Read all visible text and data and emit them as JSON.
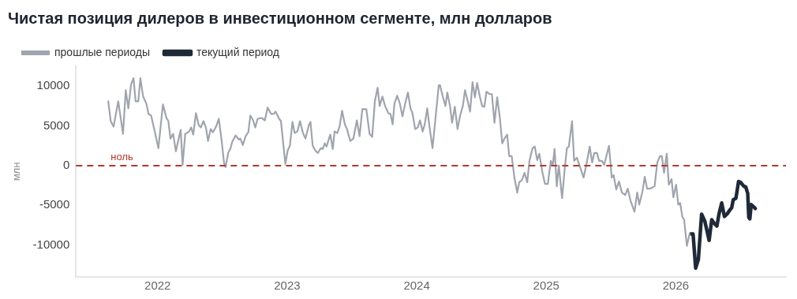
{
  "chart_data": {
    "type": "line",
    "title": "Чистая позиция дилеров в инвестиционном сегменте, млн долларов",
    "ylabel": "млн",
    "xlim": [
      2021.37,
      2026.85
    ],
    "xticks": [
      2022,
      2023,
      2024,
      2025,
      2026
    ],
    "ylim": [
      -14000,
      12500
    ],
    "yticks": [
      -10000,
      -5000,
      0,
      5000,
      10000
    ],
    "grid": false,
    "legend": "top left",
    "marker": "none",
    "line_style": "solid",
    "ref_lines": [
      {
        "axis": "y",
        "value": 0,
        "label": "ноль",
        "color": "#b03a2e",
        "line_style": "dashed"
      }
    ],
    "series": [
      {
        "name": "прошлые периоды",
        "color": "#a0a4ad",
        "x": [
          2021.619,
          2021.638,
          2021.66,
          2021.696,
          2021.733,
          2021.754,
          2021.774,
          2021.795,
          2021.814,
          2021.83,
          2021.851,
          2021.867,
          2021.888,
          2021.913,
          2021.93,
          2021.95,
          2021.975,
          2022.006,
          2022.041,
          2022.068,
          2022.083,
          2022.099,
          2022.12,
          2022.141,
          2022.178,
          2022.193,
          2022.213,
          2022.244,
          2022.259,
          2022.275,
          2022.296,
          2022.317,
          2022.333,
          2022.354,
          2022.373,
          2022.389,
          2022.41,
          2022.427,
          2022.451,
          2022.472,
          2022.493,
          2022.513,
          2022.524,
          2022.545,
          2022.561,
          2022.576,
          2022.602,
          2022.627,
          2022.638,
          2022.658,
          2022.679,
          2022.7,
          2022.716,
          2022.737,
          2022.754,
          2022.772,
          2022.803,
          2022.828,
          2022.849,
          2022.876,
          2022.896,
          2022.911,
          2022.938,
          2022.952,
          2022.986,
          2023.004,
          2023.021,
          2023.041,
          2023.058,
          2023.079,
          2023.099,
          2023.12,
          2023.141,
          2023.168,
          2023.18,
          2023.197,
          2023.217,
          2023.238,
          2023.259,
          2023.275,
          2023.29,
          2023.304,
          2023.321,
          2023.333,
          2023.352,
          2023.366,
          2023.387,
          2023.404,
          2023.424,
          2023.445,
          2023.462,
          2023.487,
          2023.511,
          2023.538,
          2023.559,
          2023.58,
          2023.611,
          2023.636,
          2023.656,
          2023.677,
          2023.698,
          2023.714,
          2023.735,
          2023.756,
          2023.781,
          2023.797,
          2023.814,
          2023.828,
          2023.849,
          2023.87,
          2023.89,
          2023.911,
          2023.932,
          2023.952,
          2023.967,
          2023.988,
          2024.008,
          2024.025,
          2024.046,
          2024.062,
          2024.081,
          2024.101,
          2024.122,
          2024.145,
          2024.17,
          2024.18,
          2024.201,
          2024.222,
          2024.236,
          2024.257,
          2024.273,
          2024.294,
          2024.315,
          2024.335,
          2024.356,
          2024.373,
          2024.398,
          2024.412,
          2024.431,
          2024.449,
          2024.466,
          2024.487,
          2024.505,
          2024.522,
          2024.538,
          2024.563,
          2024.58,
          2024.6,
          2024.621,
          2024.642,
          2024.66,
          2024.677,
          2024.698,
          2024.714,
          2024.733,
          2024.754,
          2024.776,
          2024.791,
          2024.812,
          2024.832,
          2024.853,
          2024.87,
          2024.894,
          2024.911,
          2024.93,
          2024.946,
          2024.971,
          2024.99,
          2025.012,
          2025.035,
          2025.05,
          2025.064,
          2025.081,
          2025.097,
          2025.122,
          2025.143,
          2025.159,
          2025.174,
          2025.199,
          2025.215,
          2025.236,
          2025.257,
          2025.288,
          2025.308,
          2025.335,
          2025.354,
          2025.371,
          2025.391,
          2025.408,
          2025.429,
          2025.447,
          2025.464,
          2025.484,
          2025.505,
          2025.52,
          2025.54,
          2025.561,
          2025.584,
          2025.609,
          2025.629,
          2025.65,
          2025.681,
          2025.702,
          2025.718,
          2025.743,
          2025.76,
          2025.778,
          2025.801,
          2025.836,
          2025.857,
          2025.878,
          2025.892,
          2025.909,
          2025.93,
          2025.946,
          2025.967,
          2025.981,
          2026.002,
          2026.019,
          2026.033,
          2026.05,
          2026.064,
          2026.085,
          2026.106
        ],
        "values": [
          8100,
          5600,
          4900,
          8100,
          4000,
          9500,
          7200,
          10200,
          11000,
          8100,
          8100,
          11000,
          8700,
          7800,
          6500,
          6300,
          4500,
          2200,
          7700,
          6000,
          5600,
          3400,
          4000,
          1800,
          4500,
          100,
          4000,
          4300,
          4800,
          3900,
          6600,
          5100,
          4800,
          5600,
          4800,
          3100,
          4600,
          4200,
          4900,
          5900,
          3300,
          300,
          -200,
          1600,
          2100,
          3000,
          3800,
          3300,
          3400,
          2600,
          3700,
          4200,
          6300,
          5700,
          4800,
          5900,
          6000,
          5700,
          7300,
          6500,
          6500,
          6800,
          5900,
          5600,
          200,
          1900,
          2500,
          5500,
          4100,
          4300,
          5600,
          4200,
          3400,
          5100,
          5500,
          2500,
          1900,
          1600,
          2200,
          2100,
          2800,
          2400,
          3300,
          3900,
          2100,
          4300,
          4100,
          4900,
          6900,
          5200,
          4600,
          3100,
          3400,
          5700,
          3700,
          7100,
          7100,
          4000,
          3600,
          8100,
          9800,
          7500,
          8700,
          7500,
          6600,
          6500,
          5200,
          7800,
          8800,
          7800,
          6200,
          7800,
          9200,
          7200,
          6600,
          4600,
          4800,
          5700,
          4300,
          5200,
          7200,
          4600,
          2200,
          6000,
          10100,
          10100,
          8700,
          7500,
          9200,
          7500,
          5400,
          7400,
          4600,
          6300,
          7500,
          9500,
          7800,
          6800,
          10500,
          8600,
          10400,
          8700,
          7500,
          7400,
          9300,
          9000,
          9000,
          5400,
          8600,
          6000,
          2800,
          3400,
          3900,
          1200,
          1200,
          -1500,
          -3400,
          -2100,
          -1800,
          -900,
          -2100,
          600,
          2200,
          2400,
          700,
          1500,
          -900,
          -2300,
          -2300,
          600,
          0,
          2100,
          -2600,
          0,
          -4100,
          -300,
          2200,
          2400,
          5600,
          600,
          1000,
          0,
          -1500,
          0,
          2400,
          400,
          1600,
          1600,
          600,
          600,
          100,
          1200,
          2500,
          -1500,
          -1200,
          -3000,
          -2000,
          -3400,
          -3700,
          -2900,
          -4400,
          -5800,
          -3400,
          -4900,
          -3200,
          -1400,
          -2900,
          -2900,
          -2600,
          400,
          1200,
          1200,
          -900,
          1500,
          -2400,
          -1700,
          -4000,
          -2400,
          -4900,
          -4700,
          -6400,
          -6800,
          -10100,
          -8600
        ]
      },
      {
        "name": "текущий период",
        "color": "#1f2937",
        "x": [
          2026.116,
          2026.133,
          2026.153,
          2026.174,
          2026.199,
          2026.224,
          2026.257,
          2026.277,
          2026.298,
          2026.317,
          2026.333,
          2026.354,
          2026.375,
          2026.395,
          2026.416,
          2026.431,
          2026.443,
          2026.464,
          2026.484,
          2026.499,
          2026.526,
          2026.54,
          2026.555,
          2026.563,
          2026.571,
          2026.582,
          2026.602,
          2026.613
        ],
        "values": [
          -8600,
          -8600,
          -12900,
          -11800,
          -6100,
          -7000,
          -9400,
          -6800,
          -7300,
          -7600,
          -6100,
          -4700,
          -6400,
          -6100,
          -5600,
          -5300,
          -4300,
          -4100,
          -2000,
          -2100,
          -2600,
          -2700,
          -3500,
          -6500,
          -6700,
          -4900,
          -5200,
          -5400
        ]
      }
    ]
  }
}
